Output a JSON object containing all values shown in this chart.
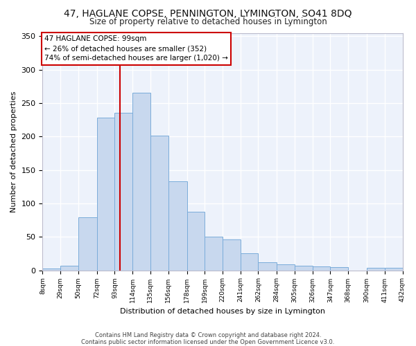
{
  "title": "47, HAGLANE COPSE, PENNINGTON, LYMINGTON, SO41 8DQ",
  "subtitle": "Size of property relative to detached houses in Lymington",
  "xlabel": "Distribution of detached houses by size in Lymington",
  "ylabel": "Number of detached properties",
  "bar_color": "#c8d8ee",
  "bar_edge_color": "#7aacda",
  "bins": [
    8,
    29,
    50,
    72,
    93,
    114,
    135,
    156,
    178,
    199,
    220,
    241,
    262,
    284,
    305,
    326,
    347,
    368,
    390,
    411,
    432
  ],
  "counts": [
    3,
    7,
    79,
    228,
    236,
    266,
    201,
    133,
    88,
    50,
    46,
    25,
    12,
    9,
    7,
    6,
    5,
    0,
    4,
    4
  ],
  "tick_labels": [
    "8sqm",
    "29sqm",
    "50sqm",
    "72sqm",
    "93sqm",
    "114sqm",
    "135sqm",
    "156sqm",
    "178sqm",
    "199sqm",
    "220sqm",
    "241sqm",
    "262sqm",
    "284sqm",
    "305sqm",
    "326sqm",
    "347sqm",
    "368sqm",
    "390sqm",
    "411sqm",
    "432sqm"
  ],
  "yticks": [
    0,
    50,
    100,
    150,
    200,
    250,
    300,
    350
  ],
  "ylim": [
    0,
    355
  ],
  "red_line_x": 99,
  "annotation_line1": "47 HAGLANE COPSE: 99sqm",
  "annotation_line2": "← 26% of detached houses are smaller (352)",
  "annotation_line3": "74% of semi-detached houses are larger (1,020) →",
  "annotation_box_color": "#ffffff",
  "annotation_border_color": "#cc0000",
  "footnote": "Contains HM Land Registry data © Crown copyright and database right 2024.\nContains public sector information licensed under the Open Government Licence v3.0.",
  "bg_color": "#edf2fb",
  "grid_color": "#ffffff",
  "title_fontsize": 10,
  "subtitle_fontsize": 8.5,
  "ylabel_fontsize": 8,
  "xlabel_fontsize": 8,
  "tick_fontsize": 6.5,
  "ytick_fontsize": 8,
  "annot_fontsize": 7.5,
  "footnote_fontsize": 6
}
